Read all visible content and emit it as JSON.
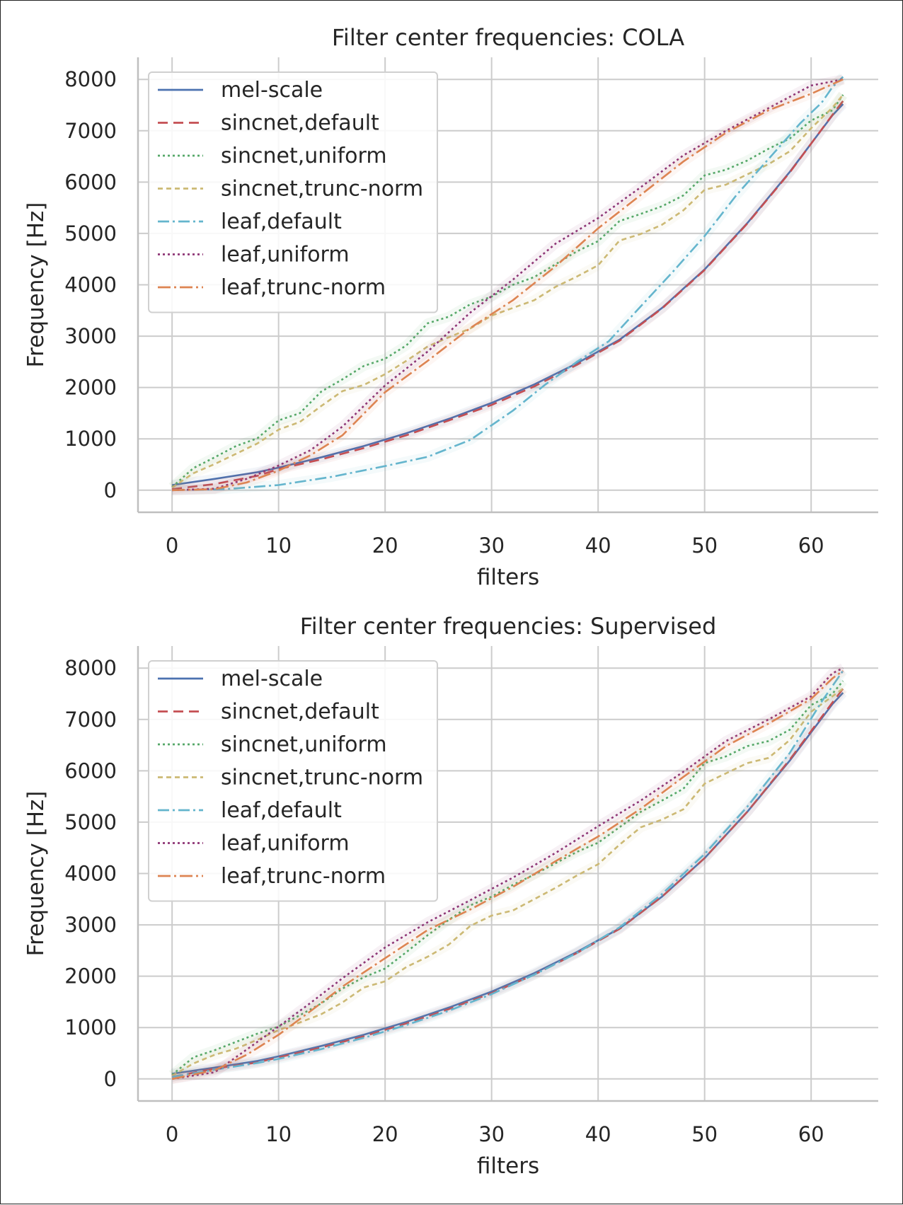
{
  "chart_data": [
    {
      "type": "line",
      "title": "Filter center frequencies: COLA",
      "xlabel": "filters",
      "ylabel": "Frequency [Hz]",
      "xlim": [
        -3.2,
        66.3
      ],
      "ylim": [
        -430,
        8430
      ],
      "xticks": [
        0,
        10,
        20,
        30,
        40,
        50,
        60
      ],
      "yticks": [
        0,
        1000,
        2000,
        3000,
        4000,
        5000,
        6000,
        7000,
        8000
      ],
      "grid": true,
      "legend_position": "upper-left",
      "series": [
        {
          "name": "mel-scale",
          "color": "#4c72b0",
          "dash": "",
          "x": [
            0,
            4,
            8,
            10,
            14,
            18,
            22,
            26,
            30,
            34,
            38,
            42,
            46,
            50,
            54,
            58,
            62,
            63
          ],
          "y": [
            100,
            220,
            350,
            440,
            640,
            860,
            1110,
            1390,
            1700,
            2060,
            2470,
            2930,
            3550,
            4300,
            5200,
            6200,
            7300,
            7520
          ]
        },
        {
          "name": "sincnet,default",
          "color": "#c44e52",
          "dash": "14,8",
          "x": [
            0,
            4,
            8,
            10,
            14,
            18,
            22,
            26,
            30,
            34,
            38,
            42,
            46,
            50,
            54,
            58,
            62,
            63
          ],
          "y": [
            20,
            120,
            280,
            410,
            600,
            820,
            1070,
            1360,
            1660,
            2020,
            2440,
            2910,
            3540,
            4290,
            5190,
            6190,
            7310,
            7580
          ]
        },
        {
          "name": "sincnet,uniform",
          "color": "#55a868",
          "dash": "3,4",
          "x": [
            0,
            2,
            4,
            6,
            8,
            10,
            12,
            14,
            16,
            18,
            20,
            22,
            24,
            26,
            28,
            30,
            32,
            34,
            36,
            38,
            40,
            42,
            44,
            46,
            48,
            50,
            52,
            54,
            56,
            58,
            60,
            62,
            63
          ],
          "y": [
            60,
            430,
            640,
            860,
            1010,
            1360,
            1500,
            1920,
            2160,
            2420,
            2560,
            2820,
            3250,
            3380,
            3620,
            3770,
            4000,
            4150,
            4400,
            4650,
            4850,
            5240,
            5380,
            5530,
            5740,
            6130,
            6240,
            6420,
            6650,
            6850,
            7200,
            7400,
            7700
          ]
        },
        {
          "name": "sincnet,trunc-norm",
          "color": "#ccb974",
          "dash": "7,5",
          "x": [
            0,
            2,
            4,
            6,
            8,
            10,
            12,
            14,
            16,
            18,
            20,
            22,
            24,
            26,
            28,
            30,
            32,
            34,
            36,
            38,
            40,
            42,
            44,
            46,
            48,
            50,
            52,
            54,
            56,
            58,
            60,
            62,
            63
          ],
          "y": [
            50,
            330,
            510,
            710,
            910,
            1180,
            1330,
            1640,
            1930,
            2050,
            2260,
            2520,
            2800,
            2980,
            3150,
            3400,
            3550,
            3700,
            3960,
            4160,
            4380,
            4860,
            4990,
            5170,
            5450,
            5850,
            5950,
            6150,
            6350,
            6600,
            7050,
            7450,
            7700
          ]
        },
        {
          "name": "leaf,default",
          "color": "#64b5cd",
          "dash": "16,5,3,5",
          "x": [
            0,
            5,
            10,
            15,
            20,
            24,
            28,
            32,
            35,
            38,
            41,
            44,
            47,
            50,
            53,
            56,
            59,
            61,
            62,
            63
          ],
          "y": [
            0,
            20,
            100,
            260,
            470,
            650,
            980,
            1550,
            2050,
            2500,
            2900,
            3580,
            4250,
            4950,
            5750,
            6450,
            7150,
            7550,
            7850,
            8050
          ]
        },
        {
          "name": "leaf,uniform",
          "color": "#8e3676",
          "dash": "3,4,3,4",
          "x": [
            0,
            4,
            7,
            10,
            13,
            16,
            20,
            24,
            28,
            32,
            36,
            40,
            44,
            48,
            52,
            56,
            60,
            63
          ],
          "y": [
            0,
            30,
            220,
            480,
            780,
            1240,
            2040,
            2700,
            3460,
            4100,
            4800,
            5300,
            5900,
            6520,
            7000,
            7440,
            7880,
            8000
          ]
        },
        {
          "name": "leaf,trunc-norm",
          "color": "#dd8452",
          "dash": "18,5,3,5",
          "x": [
            0,
            4,
            7,
            10,
            13,
            16,
            20,
            24,
            28,
            32,
            36,
            40,
            44,
            48,
            52,
            56,
            60,
            63
          ],
          "y": [
            0,
            20,
            150,
            380,
            680,
            1070,
            1910,
            2520,
            3160,
            3700,
            4360,
            5100,
            5750,
            6400,
            6960,
            7400,
            7720,
            8000
          ]
        }
      ]
    },
    {
      "type": "line",
      "title": "Filter center frequencies: Supervised",
      "xlabel": "filters",
      "ylabel": "Frequency [Hz]",
      "xlim": [
        -3.2,
        66.3
      ],
      "ylim": [
        -430,
        8430
      ],
      "xticks": [
        0,
        10,
        20,
        30,
        40,
        50,
        60
      ],
      "yticks": [
        0,
        1000,
        2000,
        3000,
        4000,
        5000,
        6000,
        7000,
        8000
      ],
      "grid": true,
      "legend_position": "upper-left",
      "series": [
        {
          "name": "mel-scale",
          "color": "#4c72b0",
          "dash": "",
          "x": [
            0,
            4,
            8,
            10,
            14,
            18,
            22,
            26,
            30,
            34,
            38,
            42,
            46,
            50,
            54,
            58,
            62,
            63
          ],
          "y": [
            100,
            220,
            350,
            440,
            640,
            860,
            1110,
            1390,
            1700,
            2060,
            2470,
            2930,
            3550,
            4300,
            5200,
            6200,
            7300,
            7520
          ]
        },
        {
          "name": "sincnet,default",
          "color": "#c44e52",
          "dash": "14,8",
          "x": [
            0,
            4,
            8,
            10,
            14,
            18,
            22,
            26,
            30,
            34,
            38,
            42,
            46,
            50,
            54,
            58,
            62,
            63
          ],
          "y": [
            40,
            200,
            320,
            420,
            610,
            830,
            1080,
            1360,
            1670,
            2030,
            2450,
            2920,
            3550,
            4300,
            5200,
            6220,
            7330,
            7600
          ]
        },
        {
          "name": "sincnet,uniform",
          "color": "#55a868",
          "dash": "3,4",
          "x": [
            0,
            2,
            4,
            6,
            8,
            10,
            12,
            14,
            16,
            18,
            20,
            22,
            24,
            26,
            28,
            30,
            32,
            34,
            36,
            38,
            40,
            42,
            44,
            46,
            48,
            50,
            52,
            54,
            56,
            58,
            60,
            62,
            63
          ],
          "y": [
            80,
            420,
            560,
            720,
            880,
            1020,
            1240,
            1470,
            1760,
            1980,
            2150,
            2470,
            2800,
            3100,
            3380,
            3550,
            3780,
            3980,
            4200,
            4420,
            4600,
            4900,
            5200,
            5420,
            5650,
            6150,
            6280,
            6480,
            6580,
            6800,
            7280,
            7500,
            7750
          ]
        },
        {
          "name": "sincnet,trunc-norm",
          "color": "#ccb974",
          "dash": "7,5",
          "x": [
            0,
            2,
            4,
            6,
            8,
            10,
            12,
            14,
            16,
            18,
            20,
            22,
            24,
            26,
            28,
            30,
            32,
            34,
            36,
            38,
            40,
            42,
            44,
            46,
            48,
            50,
            52,
            54,
            56,
            58,
            60,
            62,
            63
          ],
          "y": [
            60,
            300,
            470,
            590,
            760,
            950,
            1100,
            1260,
            1490,
            1780,
            1900,
            2180,
            2380,
            2620,
            2980,
            3180,
            3280,
            3500,
            3720,
            3960,
            4180,
            4560,
            4900,
            5050,
            5250,
            5750,
            5950,
            6150,
            6250,
            6600,
            7150,
            7450,
            7600
          ]
        },
        {
          "name": "leaf,default",
          "color": "#64b5cd",
          "dash": "16,5,3,5",
          "x": [
            0,
            4,
            8,
            10,
            14,
            18,
            22,
            26,
            30,
            34,
            38,
            42,
            46,
            50,
            54,
            58,
            61,
            63
          ],
          "y": [
            40,
            180,
            310,
            390,
            580,
            800,
            1050,
            1330,
            1650,
            2030,
            2450,
            2950,
            3600,
            4380,
            5300,
            6350,
            7350,
            7950
          ]
        },
        {
          "name": "leaf,uniform",
          "color": "#8e3676",
          "dash": "3,4,3,4",
          "x": [
            0,
            4,
            7,
            10,
            13,
            16,
            20,
            24,
            28,
            32,
            36,
            40,
            44,
            48,
            52,
            56,
            60,
            62,
            63
          ],
          "y": [
            0,
            130,
            570,
            1020,
            1480,
            1960,
            2560,
            3050,
            3480,
            3920,
            4400,
            4920,
            5420,
            5980,
            6580,
            7000,
            7450,
            7900,
            8000
          ]
        },
        {
          "name": "leaf,trunc-norm",
          "color": "#dd8452",
          "dash": "18,5,3,5",
          "x": [
            0,
            4,
            7,
            10,
            13,
            16,
            20,
            24,
            28,
            32,
            36,
            40,
            44,
            48,
            52,
            56,
            60,
            62,
            63
          ],
          "y": [
            0,
            170,
            470,
            860,
            1320,
            1800,
            2350,
            2900,
            3300,
            3740,
            4240,
            4720,
            5260,
            5880,
            6480,
            6920,
            7400,
            7800,
            7950
          ]
        }
      ]
    }
  ]
}
